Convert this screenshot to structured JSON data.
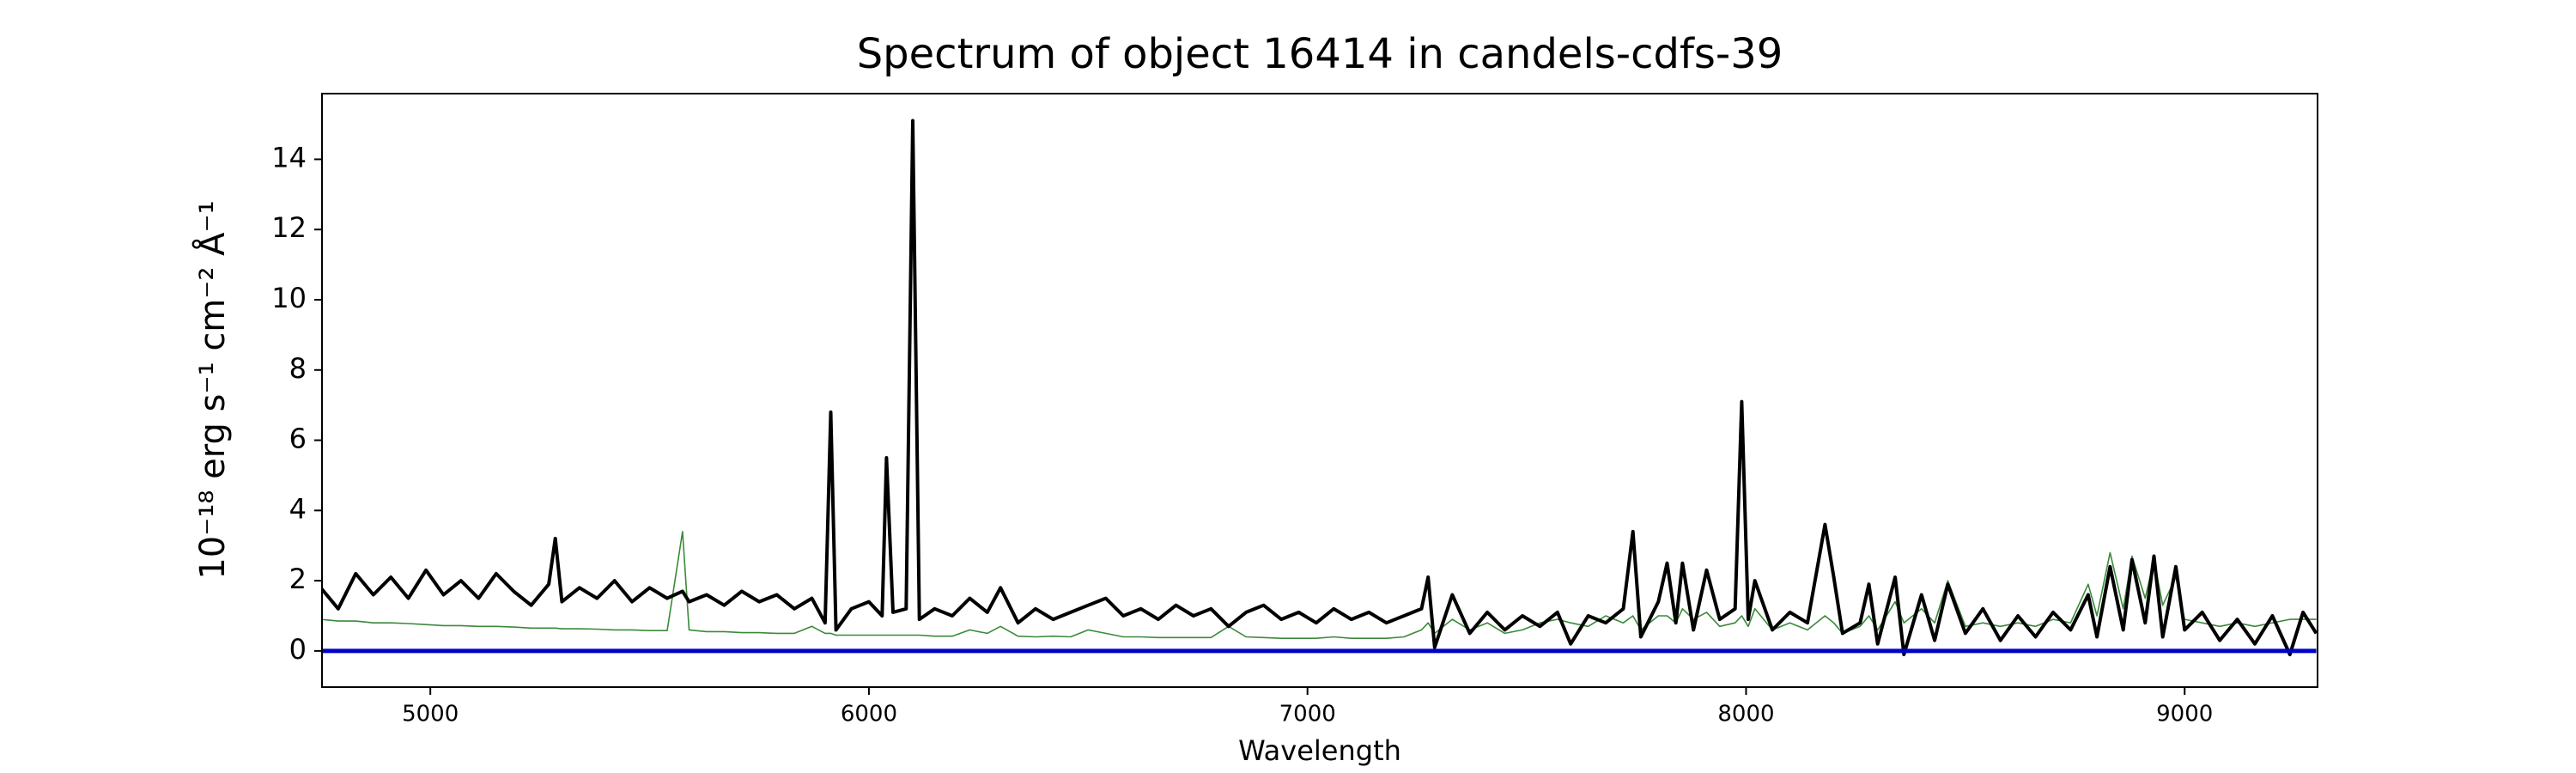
{
  "chart_data": {
    "type": "line",
    "title": "Spectrum of object 16414 in candels-cdfs-39",
    "x_label": "Wavelength",
    "y_label": "10⁻¹⁸ erg s⁻¹ cm⁻² Å⁻¹",
    "x": [
      4750,
      4790,
      4830,
      4870,
      4910,
      4950,
      4990,
      5030,
      5070,
      5110,
      5150,
      5190,
      5230,
      5270,
      5285,
      5300,
      5340,
      5380,
      5420,
      5460,
      5500,
      5540,
      5575,
      5590,
      5630,
      5670,
      5710,
      5750,
      5790,
      5830,
      5870,
      5900,
      5913,
      5925,
      5960,
      6000,
      6030,
      6040,
      6055,
      6085,
      6100,
      6115,
      6150,
      6190,
      6230,
      6270,
      6300,
      6340,
      6380,
      6420,
      6460,
      6500,
      6540,
      6580,
      6620,
      6660,
      6700,
      6740,
      6780,
      6820,
      6860,
      6900,
      6940,
      6980,
      7020,
      7060,
      7100,
      7140,
      7180,
      7220,
      7260,
      7275,
      7290,
      7330,
      7370,
      7410,
      7450,
      7490,
      7530,
      7570,
      7600,
      7640,
      7680,
      7720,
      7742,
      7760,
      7800,
      7820,
      7840,
      7855,
      7880,
      7910,
      7940,
      7975,
      7990,
      8005,
      8020,
      8060,
      8100,
      8140,
      8180,
      8200,
      8220,
      8260,
      8280,
      8300,
      8340,
      8360,
      8400,
      8430,
      8460,
      8500,
      8540,
      8580,
      8620,
      8660,
      8700,
      8740,
      8780,
      8800,
      8830,
      8860,
      8880,
      8910,
      8930,
      8950,
      8980,
      9000,
      9040,
      9080,
      9120,
      9160,
      9200,
      9240,
      9270,
      9300
    ],
    "series": [
      {
        "color": "#3a8a3a",
        "width": 1.6,
        "values": [
          0.9,
          0.85,
          0.85,
          0.8,
          0.8,
          0.78,
          0.75,
          0.72,
          0.72,
          0.7,
          0.7,
          0.68,
          0.65,
          0.65,
          0.65,
          0.63,
          0.63,
          0.62,
          0.6,
          0.6,
          0.58,
          0.58,
          3.4,
          0.6,
          0.55,
          0.55,
          0.52,
          0.52,
          0.5,
          0.5,
          0.7,
          0.5,
          0.5,
          0.45,
          0.45,
          0.45,
          0.45,
          0.45,
          0.45,
          0.45,
          0.45,
          0.45,
          0.42,
          0.42,
          0.6,
          0.5,
          0.7,
          0.42,
          0.4,
          0.42,
          0.4,
          0.6,
          0.5,
          0.4,
          0.4,
          0.38,
          0.38,
          0.38,
          0.38,
          0.7,
          0.4,
          0.38,
          0.36,
          0.36,
          0.36,
          0.4,
          0.36,
          0.36,
          0.36,
          0.4,
          0.6,
          0.8,
          0.5,
          0.9,
          0.6,
          0.8,
          0.5,
          0.6,
          0.8,
          0.9,
          0.8,
          0.7,
          1.0,
          0.8,
          1.0,
          0.6,
          1.0,
          1.0,
          0.8,
          1.2,
          0.9,
          1.1,
          0.7,
          0.8,
          1.0,
          0.7,
          1.2,
          0.6,
          0.8,
          0.6,
          1.0,
          0.8,
          0.5,
          0.7,
          1.0,
          0.6,
          1.4,
          0.8,
          1.2,
          0.8,
          2.0,
          0.7,
          0.8,
          0.7,
          0.8,
          0.7,
          0.9,
          0.8,
          1.9,
          1.0,
          2.8,
          1.2,
          2.7,
          1.5,
          2.6,
          1.3,
          2.1,
          0.9,
          0.8,
          0.7,
          0.8,
          0.7,
          0.8,
          0.9,
          0.9,
          0.9
        ]
      },
      {
        "color": "#000000",
        "width": 4,
        "values": [
          1.8,
          1.2,
          2.2,
          1.6,
          2.1,
          1.5,
          2.3,
          1.6,
          2.0,
          1.5,
          2.2,
          1.7,
          1.3,
          1.9,
          3.2,
          1.4,
          1.8,
          1.5,
          2.0,
          1.4,
          1.8,
          1.5,
          1.7,
          1.4,
          1.6,
          1.3,
          1.7,
          1.4,
          1.6,
          1.2,
          1.5,
          0.8,
          6.8,
          0.6,
          1.2,
          1.4,
          1.0,
          5.5,
          1.1,
          1.2,
          15.1,
          0.9,
          1.2,
          1.0,
          1.5,
          1.1,
          1.8,
          0.8,
          1.2,
          0.9,
          1.1,
          1.3,
          1.5,
          1.0,
          1.2,
          0.9,
          1.3,
          1.0,
          1.2,
          0.7,
          1.1,
          1.3,
          0.9,
          1.1,
          0.8,
          1.2,
          0.9,
          1.1,
          0.8,
          1.0,
          1.2,
          2.1,
          0.1,
          1.6,
          0.5,
          1.1,
          0.6,
          1.0,
          0.7,
          1.1,
          0.2,
          1.0,
          0.8,
          1.2,
          3.4,
          0.4,
          1.4,
          2.5,
          0.8,
          2.5,
          0.6,
          2.3,
          0.9,
          1.2,
          7.1,
          0.9,
          2.0,
          0.6,
          1.1,
          0.8,
          3.6,
          2.1,
          0.5,
          0.8,
          1.9,
          0.2,
          2.1,
          -0.1,
          1.6,
          0.3,
          1.9,
          0.5,
          1.2,
          0.3,
          1.0,
          0.4,
          1.1,
          0.6,
          1.6,
          0.4,
          2.4,
          0.6,
          2.6,
          0.8,
          2.7,
          0.4,
          2.4,
          0.6,
          1.1,
          0.3,
          0.9,
          0.2,
          1.0,
          -0.1,
          1.1,
          0.5
        ]
      },
      {
        "color": "#0000cc",
        "width": 5,
        "x": [
          4750,
          9300
        ],
        "values": [
          0,
          0
        ]
      }
    ],
    "xlim": [
      4753,
      9303
    ],
    "ylim": [
      -1.03,
      15.87
    ],
    "xticks": [
      5000,
      6000,
      7000,
      8000,
      9000
    ],
    "yticks": [
      0,
      2,
      4,
      6,
      8,
      10,
      12,
      14
    ]
  }
}
